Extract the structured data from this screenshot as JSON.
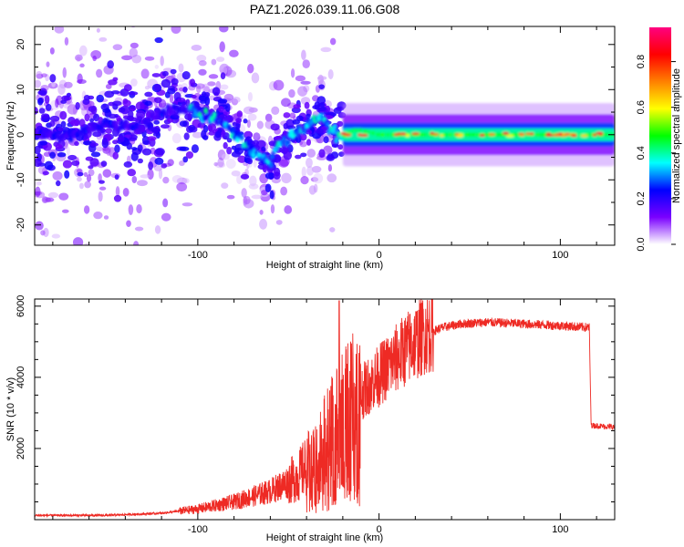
{
  "title": "PAZ1.2026.039.11.06.G08",
  "colors": {
    "snr_line": "#ee2a24",
    "axis": "#000000",
    "background": "#ffffff"
  },
  "chart_data": [
    {
      "type": "heatmap",
      "name": "spectrogram",
      "xlabel": "Height of straight line (km)",
      "ylabel": "Frequency (Hz)",
      "xlim": [
        -190,
        130
      ],
      "ylim": [
        -24.5,
        24
      ],
      "xticks": [
        -100,
        0,
        100
      ],
      "xtick_labels": [
        "-100",
        "0",
        "100"
      ],
      "yticks": [
        -20,
        -10,
        0,
        10,
        20
      ],
      "ytick_labels": [
        "-20",
        "-10",
        "0",
        "10",
        "20"
      ],
      "ridge": {
        "x": [
          -190,
          -170,
          -150,
          -130,
          -115,
          -102,
          -95,
          -88,
          -80,
          -72,
          -65,
          -60,
          -55,
          -48,
          -40,
          -33,
          -28,
          -22,
          -18,
          -14,
          -10,
          -5,
          0,
          10,
          20,
          40,
          60,
          80,
          100,
          130
        ],
        "y": [
          0,
          0,
          2,
          2,
          6,
          5,
          4,
          3,
          1,
          -3,
          -5,
          -6,
          -2,
          0,
          2,
          4,
          2,
          -1,
          0,
          1,
          1,
          0.5,
          0,
          0,
          0,
          0,
          0,
          0,
          0,
          0
        ]
      },
      "colorbar": {
        "label": "Normalized spectral amplitude",
        "range": [
          0,
          0.95
        ],
        "ticks": [
          0.0,
          0.2,
          0.4,
          0.6,
          0.8
        ],
        "tick_labels": [
          "0.0",
          "0.2",
          "0.4",
          "0.6",
          "0.8"
        ],
        "stops": [
          "#ffffff",
          "#7a00ff",
          "#0000ff",
          "#00ffff",
          "#00ff00",
          "#ffff00",
          "#ff8000",
          "#ff0000",
          "#ff0080"
        ]
      }
    },
    {
      "type": "line",
      "name": "snr",
      "xlabel": "Height of straight line (km)",
      "ylabel": "SNR (10 * v/v)",
      "xlim": [
        -190,
        130
      ],
      "ylim": [
        0,
        6200
      ],
      "xticks": [
        -100,
        0,
        100
      ],
      "xtick_labels": [
        "-100",
        "0",
        "100"
      ],
      "yticks": [
        2000,
        4000,
        6000
      ],
      "ytick_labels": [
        "2000",
        "4000",
        "6000"
      ],
      "trend": {
        "x": [
          -190,
          -150,
          -120,
          -100,
          -80,
          -60,
          -45,
          -35,
          -25,
          -15,
          -5,
          5,
          15,
          25,
          35,
          45,
          60,
          80,
          100,
          116,
          117,
          130
        ],
        "y": [
          120,
          120,
          180,
          300,
          500,
          800,
          1200,
          1800,
          2600,
          3300,
          3800,
          4300,
          4800,
          5200,
          5400,
          5500,
          5550,
          5500,
          5450,
          5400,
          2650,
          2600
        ]
      },
      "spike": {
        "x": -22,
        "y": 6150
      }
    }
  ]
}
